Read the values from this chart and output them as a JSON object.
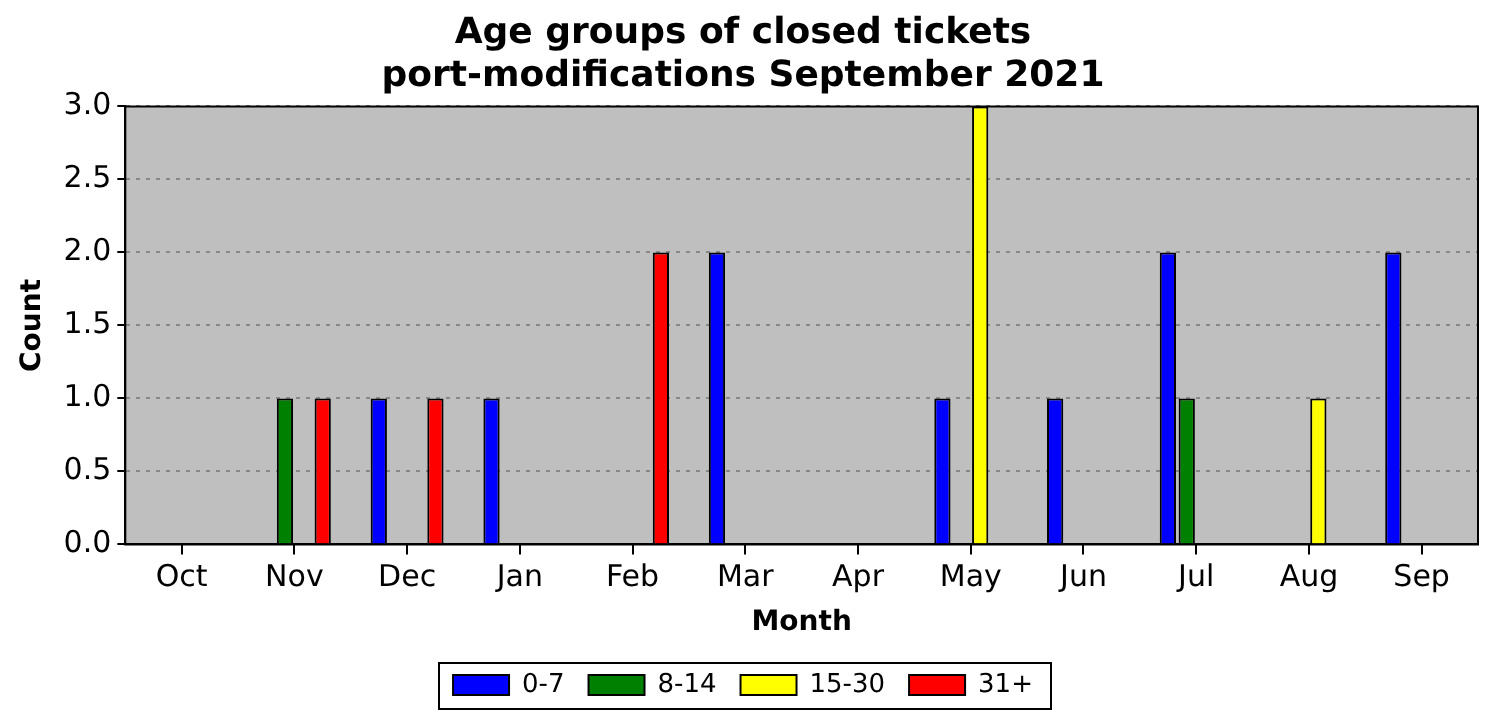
{
  "chart_data": {
    "type": "bar",
    "title": "Age groups of closed tickets",
    "subtitle": "port-modifications September 2021",
    "xlabel": "Month",
    "ylabel": "Count",
    "categories": [
      "Oct",
      "Nov",
      "Dec",
      "Jan",
      "Feb",
      "Mar",
      "Apr",
      "May",
      "Jun",
      "Jul",
      "Aug",
      "Sep"
    ],
    "series": [
      {
        "name": "0-7",
        "color": "#0000ff",
        "values": [
          0,
          0,
          1,
          1,
          0,
          2,
          0,
          1,
          1,
          2,
          0,
          2
        ]
      },
      {
        "name": "8-14",
        "color": "#008000",
        "values": [
          0,
          1,
          0,
          0,
          0,
          0,
          0,
          0,
          0,
          1,
          0,
          0
        ]
      },
      {
        "name": "15-30",
        "color": "#ffff00",
        "values": [
          0,
          0,
          0,
          0,
          0,
          0,
          0,
          3,
          0,
          0,
          1,
          0
        ]
      },
      {
        "name": "31+",
        "color": "#ff0000",
        "values": [
          0,
          1,
          1,
          0,
          2,
          0,
          0,
          0,
          0,
          0,
          0,
          0
        ]
      }
    ],
    "ylim": [
      0,
      3
    ],
    "yticks": [
      {
        "value": 0,
        "label": "0.0"
      },
      0.5,
      {
        "value": 1,
        "label": "1.0"
      },
      1.5,
      {
        "value": 2,
        "label": "2.0"
      },
      2.5,
      {
        "value": 3,
        "label": "3.0"
      }
    ],
    "grid": "y",
    "legend": "bottom"
  }
}
